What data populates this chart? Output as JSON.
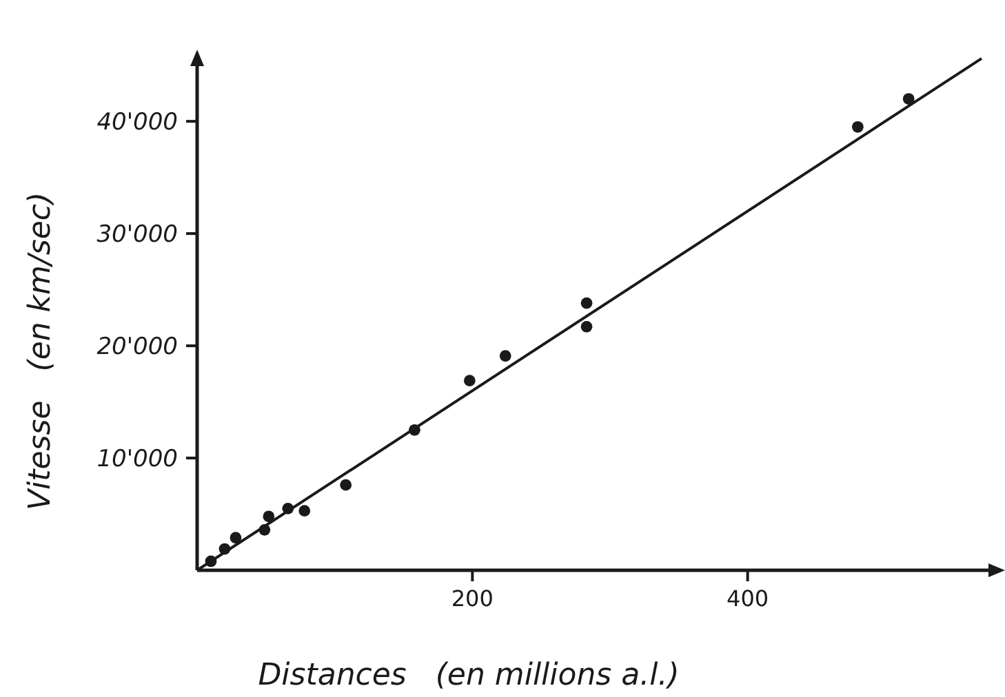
{
  "chart_data": {
    "type": "scatter",
    "xlabel": "Distances   (en millions a.l.)",
    "ylabel": "Vitesse   (en km/sec)",
    "xlim": [
      0,
      583
    ],
    "ylim": [
      0,
      45900
    ],
    "xticks": [
      200,
      400
    ],
    "yticks": [
      {
        "value": 10000,
        "label": "10'000"
      },
      {
        "value": 20000,
        "label": "20'000"
      },
      {
        "value": 30000,
        "label": "30'000"
      },
      {
        "value": 40000,
        "label": "40'000"
      }
    ],
    "grid": false,
    "marker": "circle",
    "series": [
      {
        "color": "#1a1a1a",
        "x": [
          10,
          20,
          28,
          49,
          52,
          66,
          78,
          108,
          158,
          198,
          224,
          283,
          283,
          480,
          517
        ],
        "values": [
          800,
          1900,
          2900,
          3600,
          4800,
          5500,
          5300,
          7600,
          12500,
          16900,
          19100,
          23800,
          21700,
          39500,
          42000
        ]
      },
      {
        "type": "line",
        "color": "#1a1a1a",
        "marker": "none",
        "line_style": "solid",
        "x": [
          0,
          570
        ],
        "values": [
          0,
          45600
        ]
      }
    ]
  }
}
